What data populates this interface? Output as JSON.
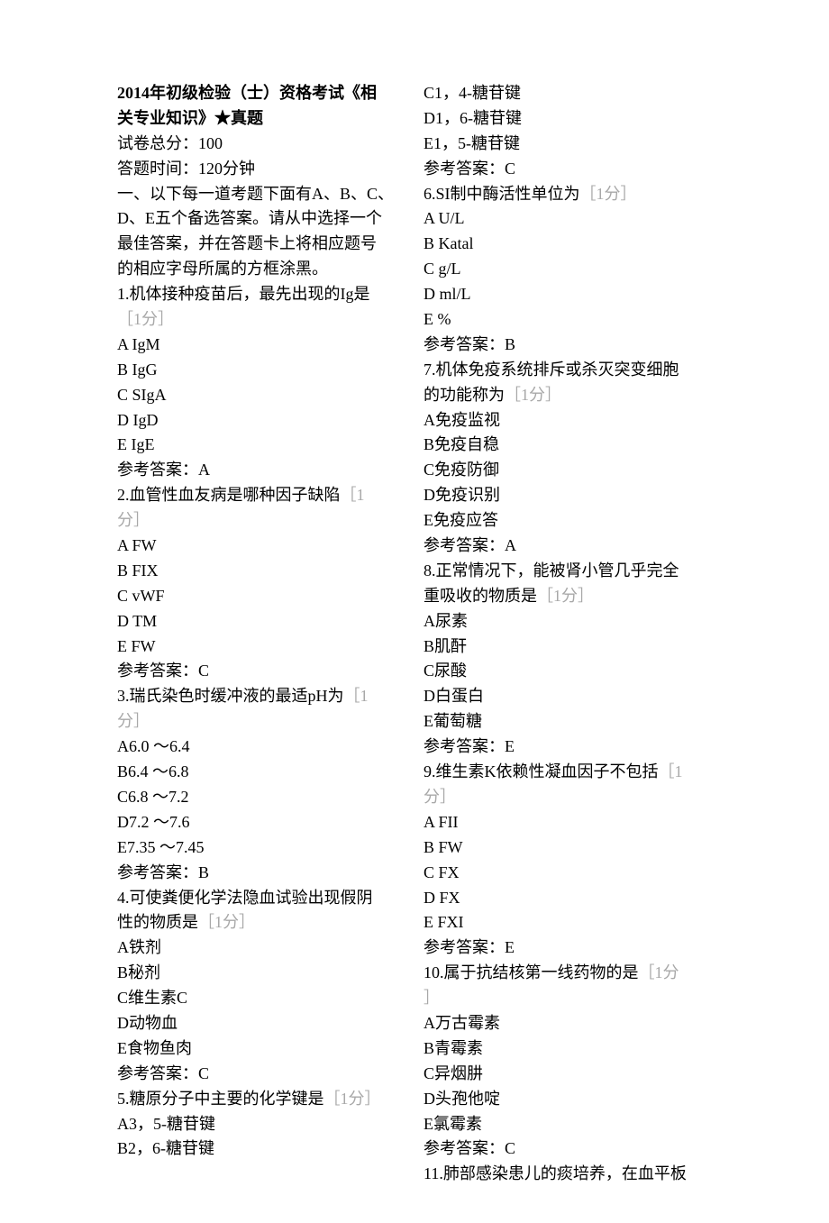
{
  "title_line1": "2014年初级检验（士）资格考试《相",
  "title_line2": "关专业知识》★真题",
  "total_score_label": "试卷总分：",
  "total_score_value": "100",
  "time_label": "答题时间：",
  "time_value": "120分钟",
  "instructions_line1": "一、以下每一道考题下面有A、B、C、",
  "instructions_line2": "D、E五个备选答案。请从中选择一个",
  "instructions_line3": "最佳答案，并在答题卡上将相应题号",
  "instructions_line4": "的相应字母所属的方框涂黑。",
  "q1": {
    "text": "1.机体接种疫苗后，最先出现的Ig是",
    "score": "［1分］",
    "optA": "A IgM",
    "optB": "B IgG",
    "optC": "C SIgA",
    "optD": "D IgD",
    "optE": "E IgE",
    "answer": "参考答案：A"
  },
  "q2": {
    "text_line1": "2.血管性血友病是哪种因子缺陷",
    "score_part1": "［1",
    "score_part2": "分］",
    "optA": "A FW",
    "optB": "B FIX",
    "optC": "C vWF",
    "optD": "D TM",
    "optE": "E FW",
    "answer": "参考答案：C"
  },
  "q3": {
    "text_line1": "3.瑞氏染色时缓冲液的最适pH为",
    "score_part1": "［1",
    "score_part2": "分］",
    "optA": "A6.0 〜6.4",
    "optB": "B6.4 〜6.8",
    "optC": "C6.8 〜7.2",
    "optD": "D7.2 〜7.6",
    "optE": "E7.35 〜7.45",
    "answer": "参考答案：B"
  },
  "q4": {
    "text_line1": "4.可使粪便化学法隐血试验出现假阴",
    "text_line2": "性的物质是",
    "score": "［1分］",
    "optA": "A铁剂",
    "optB": "B秘剂",
    "optC": "C维生素C",
    "optD": "D动物血",
    "optE": "E食物鱼肉",
    "answer": "参考答案：C"
  },
  "q5": {
    "text": "5.糖原分子中主要的化学键是",
    "score": "［1分］",
    "optA": "A3，5-糖苷键",
    "optB": "B2，6-糖苷键",
    "optC": "C1，4-糖苷键",
    "optD": "D1，6-糖苷键",
    "optE": "E1，5-糖苷键",
    "answer": "参考答案：C"
  },
  "q6": {
    "text": "6.SI制中酶活性单位为",
    "score": "［1分］",
    "optA": "A U/L",
    "optB": "B Katal",
    "optC": "C g/L",
    "optD": "D ml/L",
    "optE": "E %",
    "answer": "参考答案：B"
  },
  "q7": {
    "text_line1": "7.机体免疫系统排斥或杀灭突变细胞",
    "text_line2": "的功能称为",
    "score": "［1分］",
    "optA": "A免疫监视",
    "optB": "B免疫自稳",
    "optC": "C免疫防御",
    "optD": "D免疫识别",
    "optE": "E免疫应答",
    "answer": "参考答案：A"
  },
  "q8": {
    "text_line1": "8.正常情况下，能被肾小管几乎完全",
    "text_line2": "重吸收的物质是",
    "score": "［1分］",
    "optA": "A尿素",
    "optB": "B肌酐",
    "optC": "C尿酸",
    "optD": "D白蛋白",
    "optE": "E葡萄糖",
    "answer": "参考答案：E"
  },
  "q9": {
    "text_line1": "9.维生素K依赖性凝血因子不包括",
    "score_part1": "［1",
    "score_part2": "分］",
    "optA": "A FII",
    "optB": "B FW",
    "optC": "C FX",
    "optD": "D FX",
    "optE": "E FXI",
    "answer": "参考答案：E"
  },
  "q10": {
    "text": "10.属于抗结核第一线药物的是",
    "score_part1": "［1分",
    "score_part2": "］",
    "optA": "A万古霉素",
    "optB": "B青霉素",
    "optC": "C异烟肼",
    "optD": "D头孢他啶",
    "optE": "E氯霉素",
    "answer": "参考答案：C"
  },
  "q11": {
    "text": "11.肺部感染患儿的痰培养，在血平板"
  },
  "colors": {
    "text": "#000000",
    "score_text": "#a8a8a8",
    "background": "#ffffff"
  }
}
